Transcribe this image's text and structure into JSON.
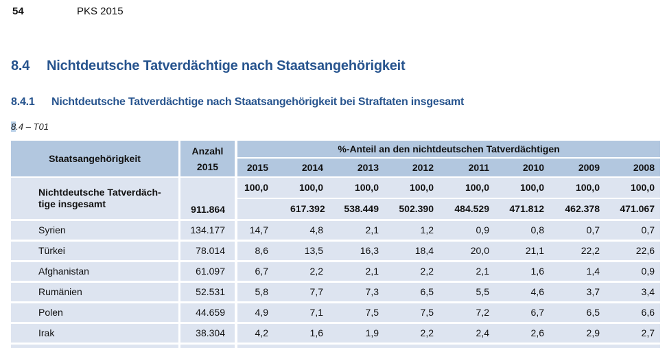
{
  "page": {
    "number": "54",
    "title": "PKS 2015"
  },
  "headings": {
    "section": {
      "num": "8.4",
      "title": "Nichtdeutsche Tatverdächtige nach Staatsangehörigkeit"
    },
    "subsection": {
      "num": "8.4.1",
      "title": "Nichtdeutsche Tatverdächtige nach Staatsangehörigkeit bei Straftaten insgesamt"
    },
    "table_label": {
      "highlighted": "8",
      "rest": ".4 – T01"
    }
  },
  "table": {
    "col1_header": "Staatsangehörigkeit",
    "col2_header_line1": "Anzahl",
    "col2_header_line2": "2015",
    "group_header": "%-Anteil an den nichtdeutschen Tatverdächtigen",
    "years": [
      "2015",
      "2014",
      "2013",
      "2012",
      "2011",
      "2010",
      "2009",
      "2008"
    ],
    "total_row": {
      "label_line1": "Nichtdeutsche Tatverdäch-",
      "label_line2": "tige insgesamt",
      "anzahl": "911.864",
      "percent": [
        "100,0",
        "100,0",
        "100,0",
        "100,0",
        "100,0",
        "100,0",
        "100,0",
        "100,0"
      ],
      "absolute": [
        "",
        "617.392",
        "538.449",
        "502.390",
        "484.529",
        "471.812",
        "462.378",
        "471.067"
      ]
    },
    "rows": [
      {
        "label": "Syrien",
        "anzahl": "134.177",
        "values": [
          "14,7",
          "4,8",
          "2,1",
          "1,2",
          "0,9",
          "0,8",
          "0,7",
          "0,7"
        ]
      },
      {
        "label": "Türkei",
        "anzahl": "78.014",
        "values": [
          "8,6",
          "13,5",
          "16,3",
          "18,4",
          "20,0",
          "21,1",
          "22,2",
          "22,6"
        ]
      },
      {
        "label": "Afghanistan",
        "anzahl": "61.097",
        "values": [
          "6,7",
          "2,2",
          "2,1",
          "2,2",
          "2,1",
          "1,6",
          "1,4",
          "0,9"
        ]
      },
      {
        "label": "Rumänien",
        "anzahl": "52.531",
        "values": [
          "5,8",
          "7,7",
          "7,3",
          "6,5",
          "5,5",
          "4,6",
          "3,7",
          "3,4"
        ]
      },
      {
        "label": "Polen",
        "anzahl": "44.659",
        "values": [
          "4,9",
          "7,1",
          "7,5",
          "7,5",
          "7,2",
          "6,7",
          "6,5",
          "6,6"
        ]
      },
      {
        "label": "Irak",
        "anzahl": "38.304",
        "values": [
          "4,2",
          "1,6",
          "1,9",
          "2,2",
          "2,4",
          "2,6",
          "2,9",
          "2,7"
        ]
      }
    ]
  },
  "colors": {
    "heading_blue": "#27548e",
    "table_header_bg": "#b2c7df",
    "table_row_bg": "#dde4f0"
  }
}
